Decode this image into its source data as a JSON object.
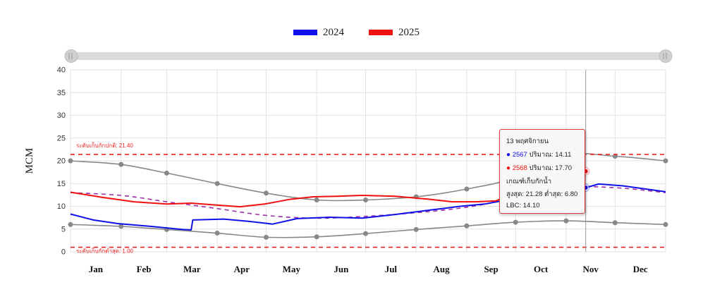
{
  "colors": {
    "series_2024": "#1010e8",
    "series_2025": "#ee1111",
    "reference_lines": "#888888",
    "lbc": "#9b2fa8",
    "threshold": "#ee2222",
    "axis_text": "#333333",
    "grid": "#e2e2e2"
  },
  "legend": [
    {
      "label": "2024",
      "color": "#1010e8"
    },
    {
      "label": "2025",
      "color": "#ee1111"
    }
  ],
  "tooltip": {
    "date": "13 พฤศจิกายน",
    "s2024_year": "2567",
    "s2024_text": " ปริมาณ: 14.11",
    "s2025_year": "2568",
    "s2025_text": " ปริมาณ: 17.70",
    "criteria_title": "เกณฑ์เก็บกักน้ำ",
    "criteria_text": "สูงสุด: 21.28 ต่ำสุด: 6.80",
    "lbc_text": "LBC: 14.10"
  },
  "chart_data": {
    "type": "line",
    "ylabel": "MCM",
    "ylim": [
      0,
      40
    ],
    "yticks": [
      0,
      5,
      10,
      15,
      20,
      25,
      30,
      35,
      40
    ],
    "x_unit": "day_of_year",
    "xlim": [
      1,
      366
    ],
    "months": [
      "Jan",
      "Feb",
      "Mar",
      "Apr",
      "May",
      "Jun",
      "Jul",
      "Aug",
      "Sep",
      "Oct",
      "Nov",
      "Dec"
    ],
    "thresholds": [
      {
        "label": "ระดับเก็บกักปกติ: 21.40",
        "value": 21.4
      },
      {
        "label": "ระดับเก็บกักต่ำสุด: 1.00",
        "value": 1.0
      }
    ],
    "series": [
      {
        "name": "2024",
        "color": "#1010e8",
        "x": [
          1,
          15,
          30,
          50,
          70,
          75,
          76,
          95,
          110,
          125,
          140,
          160,
          180,
          200,
          220,
          240,
          255,
          270,
          280,
          290,
          300,
          317,
          325,
          340,
          366
        ],
        "y": [
          8.3,
          7.0,
          6.2,
          5.6,
          4.9,
          4.8,
          7.0,
          7.2,
          6.7,
          6.1,
          7.3,
          7.6,
          7.4,
          8.2,
          9.1,
          10.0,
          10.5,
          11.5,
          12.5,
          13.4,
          13.9,
          14.1,
          14.9,
          14.5,
          13.2
        ]
      },
      {
        "name": "2025",
        "color": "#ee1111",
        "x": [
          1,
          20,
          40,
          60,
          75,
          90,
          105,
          120,
          135,
          150,
          165,
          180,
          200,
          220,
          235,
          250,
          262,
          270,
          280,
          290,
          305,
          317
        ],
        "y": [
          13.1,
          12.0,
          11.0,
          10.5,
          10.7,
          10.3,
          9.9,
          10.5,
          11.5,
          12.1,
          12.2,
          12.4,
          12.2,
          11.6,
          11.0,
          11.0,
          11.2,
          12.5,
          13.8,
          15.2,
          16.6,
          17.7
        ]
      }
    ],
    "reference_curves": [
      {
        "role": "upper",
        "x": [
          1,
          32,
          60,
          91,
          121,
          152,
          182,
          213,
          244,
          274,
          305,
          335,
          366
        ],
        "y": [
          20.0,
          19.2,
          17.3,
          15.0,
          12.9,
          11.4,
          11.4,
          12.1,
          13.8,
          16.3,
          21.3,
          21.0,
          20.0
        ]
      },
      {
        "role": "lower",
        "x": [
          1,
          32,
          60,
          91,
          121,
          152,
          182,
          213,
          244,
          274,
          305,
          335,
          366
        ],
        "y": [
          6.0,
          5.6,
          4.9,
          4.1,
          3.2,
          3.3,
          4.0,
          4.9,
          5.7,
          6.5,
          6.8,
          6.4,
          6.0
        ]
      },
      {
        "role": "lbc",
        "x": [
          1,
          32,
          60,
          91,
          121,
          152,
          182,
          213,
          244,
          274,
          305,
          335,
          366
        ],
        "y": [
          13.0,
          12.4,
          11.0,
          9.5,
          8.0,
          7.4,
          7.8,
          8.6,
          9.8,
          11.8,
          14.1,
          14.1,
          13.0
        ]
      }
    ],
    "cursor": {
      "day": 317
    }
  }
}
